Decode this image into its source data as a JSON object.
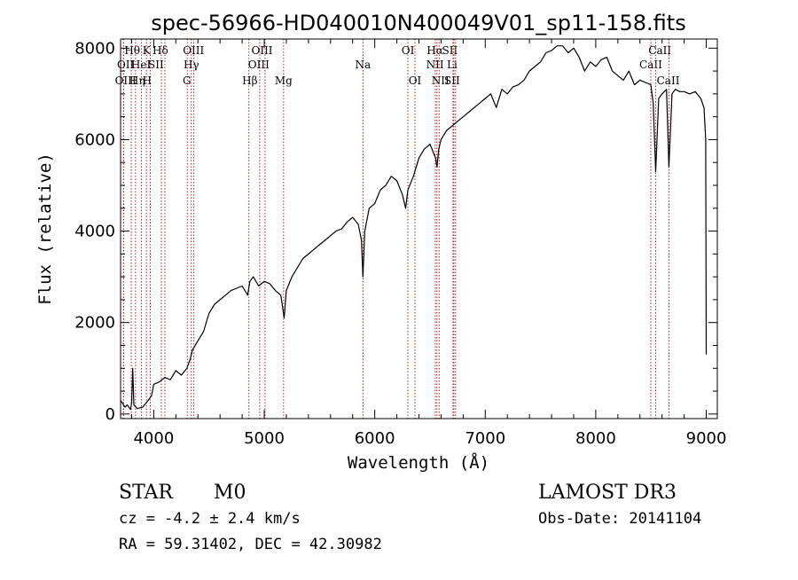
{
  "chart_data": {
    "type": "line",
    "title": "spec-56966-HD040010N400049V01_sp11-158.fits",
    "xlabel": "Wavelength (Å)",
    "ylabel": "Flux (relative)",
    "xlim": [
      3700,
      9100
    ],
    "ylim": [
      -100,
      8200
    ],
    "xticks": [
      4000,
      5000,
      6000,
      7000,
      8000,
      9000
    ],
    "xtick_labels": [
      "4000",
      "5000",
      "6000",
      "7000",
      "8000",
      "9000"
    ],
    "yticks": [
      0,
      2000,
      4000,
      6000,
      8000
    ],
    "ytick_labels": [
      "0",
      "2000",
      "4000",
      "6000",
      "8000"
    ],
    "grid": false,
    "series": [
      {
        "x": [
          3700,
          3740,
          3760,
          3790,
          3800,
          3810,
          3820,
          3850,
          3900,
          3950,
          3980,
          4000,
          4050,
          4100,
          4150,
          4200,
          4250,
          4300,
          4330,
          4350,
          4400,
          4450,
          4500,
          4550,
          4600,
          4650,
          4700,
          4750,
          4800,
          4850,
          4870,
          4900,
          4950,
          5000,
          5050,
          5100,
          5150,
          5180,
          5200,
          5250,
          5300,
          5350,
          5400,
          5450,
          5500,
          5550,
          5600,
          5650,
          5700,
          5750,
          5800,
          5850,
          5880,
          5893,
          5910,
          5950,
          6000,
          6050,
          6100,
          6150,
          6200,
          6250,
          6280,
          6300,
          6350,
          6400,
          6450,
          6500,
          6550,
          6563,
          6580,
          6600,
          6650,
          6700,
          6750,
          6800,
          6850,
          6900,
          6950,
          7000,
          7050,
          7100,
          7150,
          7200,
          7250,
          7300,
          7350,
          7400,
          7450,
          7500,
          7550,
          7600,
          7650,
          7700,
          7750,
          7800,
          7850,
          7900,
          7950,
          8000,
          8050,
          8100,
          8150,
          8200,
          8250,
          8300,
          8350,
          8400,
          8450,
          8498,
          8520,
          8542,
          8570,
          8600,
          8640,
          8662,
          8690,
          8720,
          8760,
          8800,
          8850,
          8900,
          8950,
          8980,
          8995,
          9000
        ],
        "y": [
          300,
          150,
          200,
          100,
          250,
          1000,
          200,
          120,
          150,
          300,
          400,
          650,
          700,
          800,
          750,
          950,
          850,
          1000,
          1200,
          1400,
          1600,
          1800,
          2200,
          2400,
          2500,
          2600,
          2700,
          2750,
          2800,
          2600,
          2900,
          3000,
          2800,
          2900,
          2850,
          2700,
          2600,
          2100,
          2700,
          3000,
          3200,
          3400,
          3500,
          3600,
          3700,
          3800,
          3900,
          4000,
          4050,
          4200,
          4300,
          4150,
          3800,
          3000,
          4000,
          4500,
          4600,
          4900,
          5000,
          5200,
          5100,
          4800,
          4500,
          4900,
          5200,
          5600,
          5800,
          5900,
          5600,
          5400,
          5800,
          6000,
          6200,
          6300,
          6400,
          6500,
          6600,
          6700,
          6800,
          6900,
          7000,
          6700,
          7100,
          7000,
          7150,
          7200,
          7300,
          7500,
          7600,
          7700,
          7900,
          7950,
          8050,
          8050,
          7900,
          8000,
          7800,
          7500,
          7700,
          7600,
          7750,
          7800,
          7500,
          7400,
          7300,
          7500,
          7200,
          7300,
          7250,
          7200,
          6800,
          5300,
          6900,
          7000,
          7100,
          5400,
          7000,
          7100,
          7050,
          7050,
          7000,
          7050,
          6900,
          6700,
          6000,
          1300
        ]
      }
    ],
    "lines": [
      {
        "name": "Hθ",
        "x": 3797,
        "row": 1,
        "lx": 3806
      },
      {
        "name": "OII",
        "x": 3727,
        "row": 2,
        "lx": 3745
      },
      {
        "name": "OIII",
        "x": 3727,
        "row": 3,
        "lx": 3745
      },
      {
        "name": "K",
        "x": 3934,
        "row": 1,
        "lx": 3935
      },
      {
        "name": "HeI",
        "x": 3889,
        "row": 2,
        "lx": 3885
      },
      {
        "name": "Hη",
        "x": 3835,
        "row": 3,
        "lx": 3850
      },
      {
        "name": "Hδ",
        "x": 4101,
        "row": 1,
        "lx": 4060
      },
      {
        "name": "SII",
        "x": 4069,
        "row": 2,
        "lx": 4020
      },
      {
        "name": "H",
        "x": 3968,
        "row": 3,
        "lx": 3940
      },
      {
        "name": "OIII",
        "x": 4363,
        "row": 1,
        "lx": 4360
      },
      {
        "name": "Hγ",
        "x": 4340,
        "row": 2,
        "lx": 4340
      },
      {
        "name": "G",
        "x": 4304,
        "row": 3,
        "lx": 4300
      },
      {
        "name": "Hβ",
        "x": 4861,
        "row": 3,
        "lx": 4870
      },
      {
        "name": "OIII",
        "x": 4959,
        "row": 2,
        "lx": 4950
      },
      {
        "name": "OIII",
        "x": 5007,
        "row": 1,
        "lx": 4980
      },
      {
        "name": "Mg",
        "x": 5175,
        "row": 3,
        "lx": 5175
      },
      {
        "name": "Na",
        "x": 5893,
        "row": 2,
        "lx": 5893
      },
      {
        "name": "OI",
        "x": 6300,
        "row": 1,
        "lx": 6300
      },
      {
        "name": "OI",
        "x": 6364,
        "row": 3,
        "lx": 6364
      },
      {
        "name": "Hα",
        "x": 6563,
        "row": 1,
        "lx": 6545
      },
      {
        "name": "NII",
        "x": 6548,
        "row": 2,
        "lx": 6545
      },
      {
        "name": "NII",
        "x": 6583,
        "row": 3,
        "lx": 6595
      },
      {
        "name": "SII",
        "x": 6716,
        "row": 1,
        "lx": 6680
      },
      {
        "name": "SII",
        "x": 6731,
        "row": 3,
        "lx": 6700
      },
      {
        "name": "Li",
        "x": 6708,
        "row": 2,
        "lx": 6700
      },
      {
        "name": "CaII",
        "x": 8498,
        "row": 2,
        "lx": 8498
      },
      {
        "name": "CaII",
        "x": 8542,
        "row": 1,
        "lx": 8580
      },
      {
        "name": "CaII",
        "x": 8662,
        "row": 3,
        "lx": 8655
      }
    ]
  },
  "footer": {
    "object_class": "STAR",
    "subclass": "M0",
    "survey": "LAMOST DR3",
    "cz": "cz = -4.2 ± 2.4 km/s",
    "obs_date": "Obs-Date: 20141104",
    "coords": "RA =  59.31402, DEC =  42.30982"
  },
  "colors": {
    "spectrum": "#000000",
    "marker_lines": "#b22222",
    "axes": "#000000"
  }
}
